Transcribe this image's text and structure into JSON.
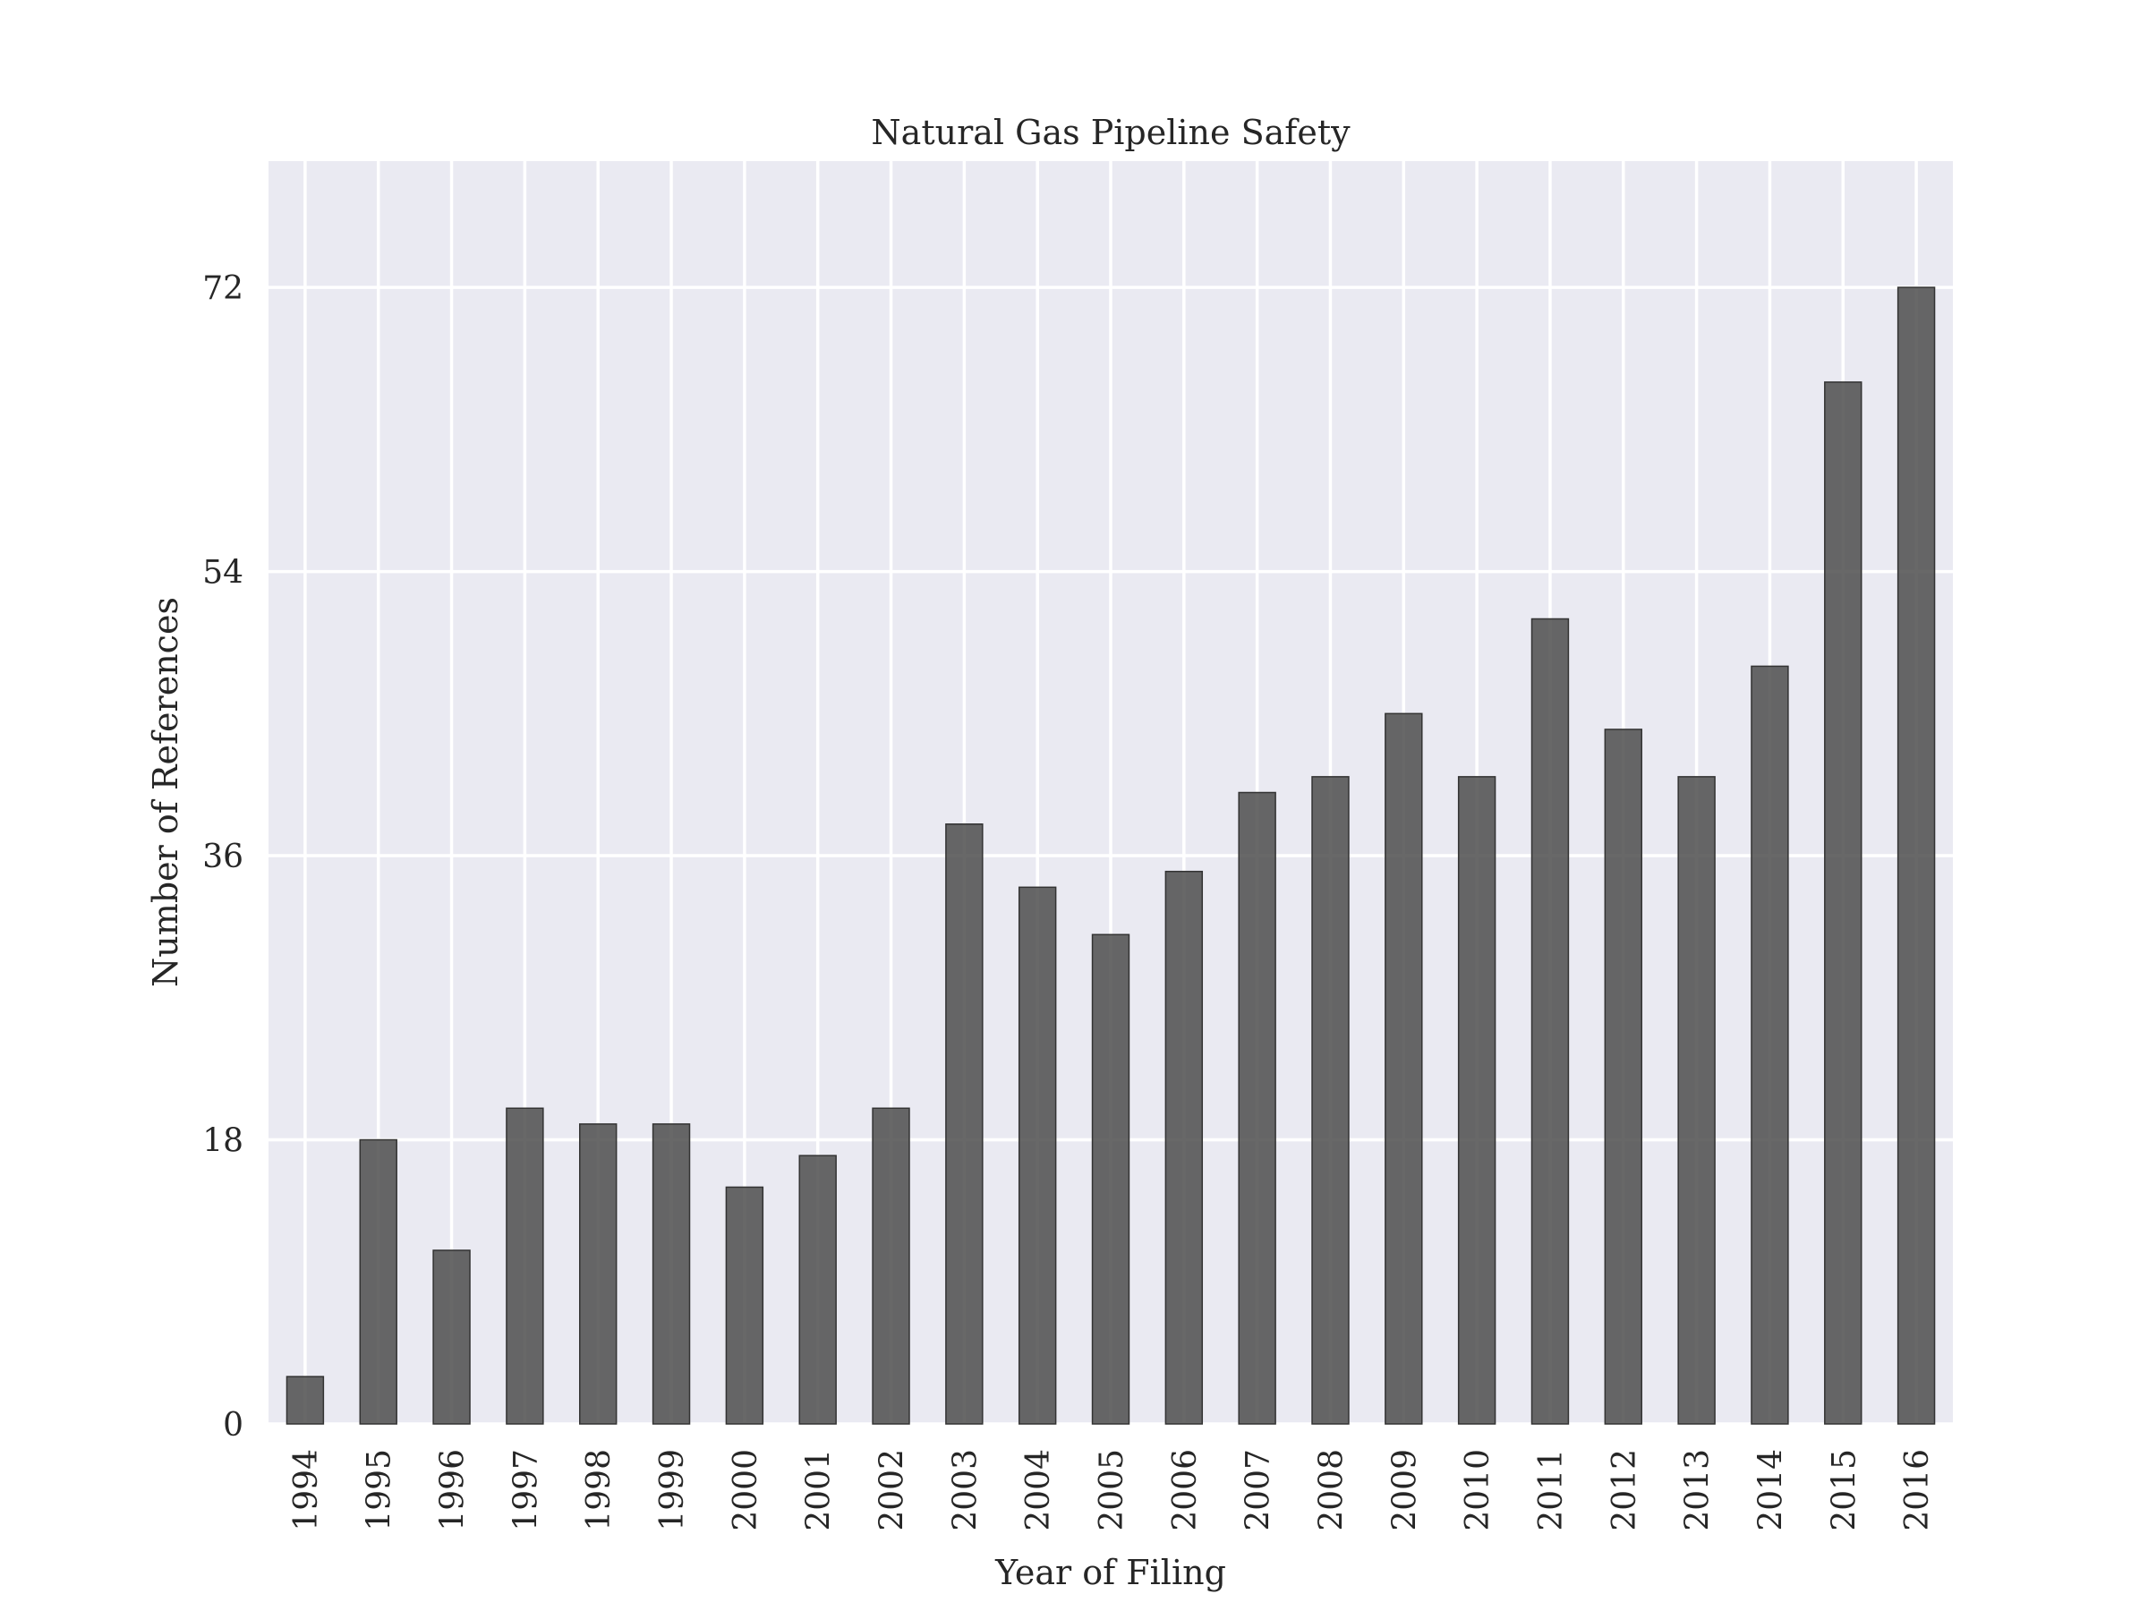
{
  "chart_data": {
    "type": "bar",
    "title": "Natural Gas Pipeline Safety",
    "xlabel": "Year of Filing",
    "ylabel": "Number of References",
    "categories": [
      "1994",
      "1995",
      "1996",
      "1997",
      "1998",
      "1999",
      "2000",
      "2001",
      "2002",
      "2003",
      "2004",
      "2005",
      "2006",
      "2007",
      "2008",
      "2009",
      "2010",
      "2011",
      "2012",
      "2013",
      "2014",
      "2015",
      "2016"
    ],
    "values": [
      3,
      18,
      11,
      20,
      19,
      19,
      15,
      17,
      20,
      38,
      34,
      31,
      35,
      40,
      41,
      45,
      41,
      51,
      44,
      41,
      48,
      66,
      72
    ],
    "yticks": [
      0,
      18,
      36,
      54,
      72
    ],
    "ylim": [
      0,
      80
    ],
    "grid": true,
    "bar_color": "#4d4d4d",
    "background_color": "#eaeaf2"
  }
}
